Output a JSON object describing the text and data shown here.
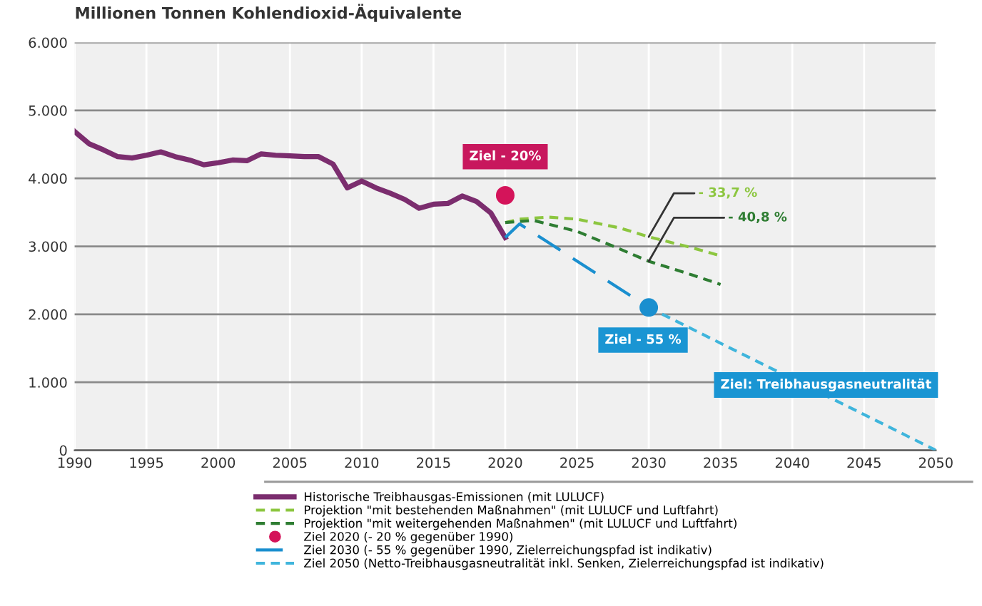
{
  "chart_data": {
    "type": "line",
    "title": "Millionen Tonnen Kohlendioxid-Äquivalente",
    "xlim": [
      1990,
      2050
    ],
    "xticks": [
      1990,
      1995,
      2000,
      2005,
      2010,
      2015,
      2020,
      2025,
      2030,
      2035,
      2040,
      2045,
      2050
    ],
    "ylim": [
      0,
      6000
    ],
    "yticks": [
      {
        "value": 0,
        "label": "0"
      },
      {
        "value": 1000,
        "label": "1.000"
      },
      {
        "value": 2000,
        "label": "2.000"
      },
      {
        "value": 3000,
        "label": "3.000"
      },
      {
        "value": 4000,
        "label": "4.000"
      },
      {
        "value": 5000,
        "label": "5.000"
      },
      {
        "value": 6000,
        "label": "6.000"
      }
    ],
    "grid": true,
    "legend": "bottom",
    "series": [
      {
        "name": "Historische Treibhausgas-Emissionen (mit LULUCF)",
        "color": "#7b2d6e",
        "line_style": "solid",
        "x": [
          1990,
          1991,
          1992,
          1993,
          1994,
          1995,
          1996,
          1997,
          1998,
          1999,
          2000,
          2001,
          2002,
          2003,
          2004,
          2005,
          2006,
          2007,
          2008,
          2009,
          2010,
          2011,
          2012,
          2013,
          2014,
          2015,
          2016,
          2017,
          2018,
          2019,
          2020
        ],
        "values": [
          4690,
          4510,
          4420,
          4320,
          4300,
          4340,
          4390,
          4320,
          4270,
          4200,
          4230,
          4270,
          4260,
          4360,
          4340,
          4330,
          4320,
          4320,
          4210,
          3860,
          3960,
          3860,
          3780,
          3690,
          3560,
          3620,
          3630,
          3740,
          3660,
          3490,
          3130
        ]
      },
      {
        "name": "Projektion \"mit bestehenden Maßnahmen\" (mit LULUCF und Luftfahrt)",
        "color": "#8cc63f",
        "line_style": "dotted",
        "x": [
          2020,
          2021,
          2023,
          2025,
          2028,
          2030,
          2033,
          2035
        ],
        "values": [
          3350,
          3400,
          3430,
          3400,
          3270,
          3140,
          2980,
          2860
        ]
      },
      {
        "name": "Projektion \"mit weitergehenden Maßnahmen\" (mit LULUCF und Luftfahrt)",
        "color": "#2e7d32",
        "line_style": "dotted",
        "x": [
          2020,
          2022,
          2025,
          2028,
          2030,
          2033,
          2035
        ],
        "values": [
          3350,
          3380,
          3220,
          2960,
          2780,
          2580,
          2440
        ]
      },
      {
        "name": "Ziel 2020 (- 20 % gegenüber 1990)",
        "type": "scatter",
        "color": "#d4145a",
        "x": [
          2020
        ],
        "values": [
          3750
        ]
      },
      {
        "name": "Ziel 2030 (- 55 % gegenüber 1990, Zielerreichungspfad ist indikativ)",
        "color": "#1a8fcf",
        "line_style": "dashed",
        "x": [
          2020,
          2021,
          2030
        ],
        "values": [
          3130,
          3330,
          2100
        ]
      },
      {
        "type": "scatter",
        "color": "#1a8fcf",
        "x": [
          2030
        ],
        "values": [
          2100
        ]
      },
      {
        "name": "Ziel 2050 (Netto-Treibhausgasneutralität inkl. Senken, Zielerreichungspfad ist indikativ)",
        "color": "#3fb5dc",
        "line_style": "dotted",
        "x": [
          2030,
          2050
        ],
        "values": [
          2100,
          0
        ]
      }
    ],
    "annotations": [
      "Ziel - 20%",
      {
        "text": "- 33,7 %",
        "x": 2030,
        "y": 3140
      },
      {
        "text": "- 40,8 %",
        "x": 2030,
        "y": 2780
      },
      "Ziel - 55 %",
      "Ziel: Treibhausgasneutralität"
    ]
  }
}
